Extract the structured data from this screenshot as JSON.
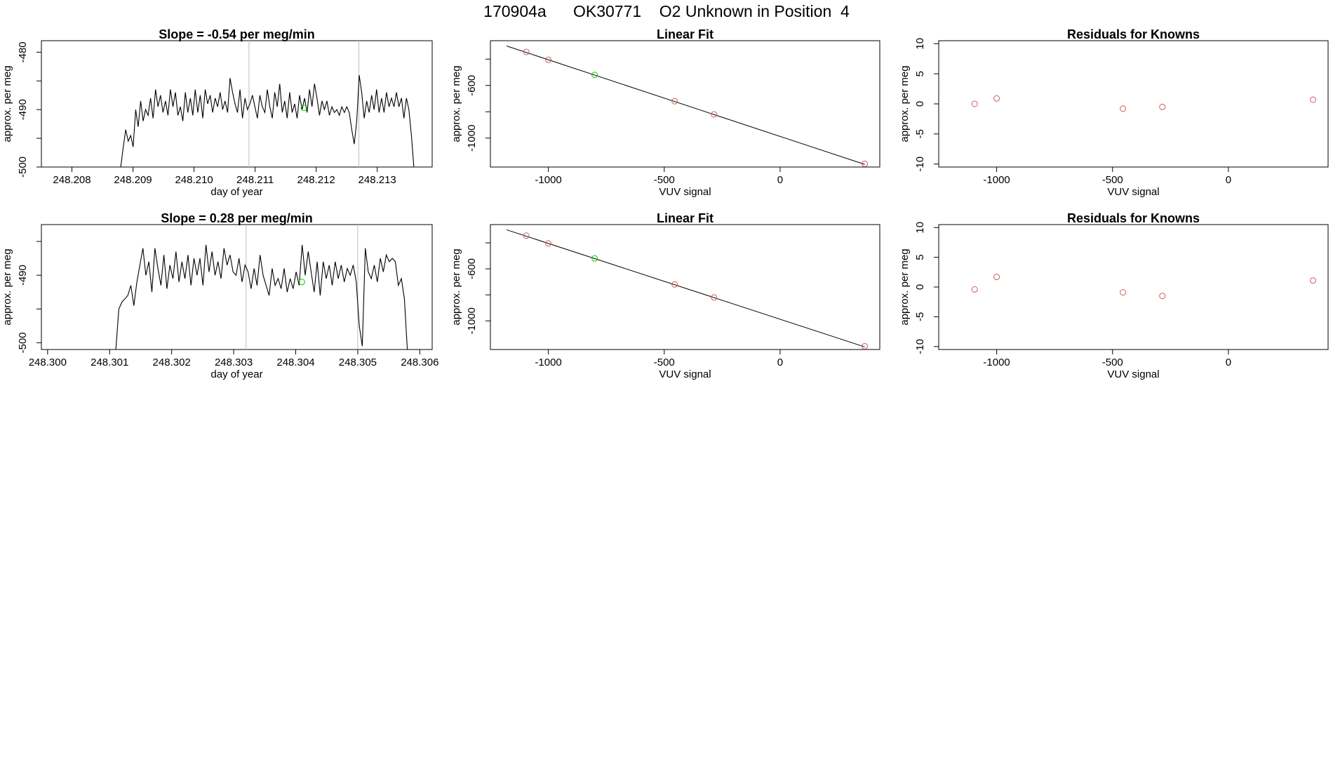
{
  "title": "170904a      OK30771    O2 Unknown in Position  4",
  "colors": {
    "line": "#000000",
    "marker": "#cd5c5c",
    "highlight": "#00cd00",
    "vline": "#bebebe"
  },
  "rows": [
    {
      "timeseries": {
        "title": "Slope =  -0.54  per meg/min",
        "xlabel": "day of year",
        "ylabel": "approx. per meg",
        "xlim": [
          248.2075,
          248.2139
        ],
        "ylim": [
          -500,
          -478
        ],
        "xticks": [
          248.208,
          248.209,
          248.21,
          248.211,
          248.212,
          248.213
        ],
        "xtick_labels": [
          "248.208",
          "248.209",
          "248.210",
          "248.211",
          "248.212",
          "248.213"
        ],
        "yticks": [
          -500,
          -495,
          -490,
          -485,
          -480
        ],
        "ytick_labels": [
          "-500",
          "",
          "-490",
          "",
          "-480"
        ],
        "vlines": [
          248.2109,
          248.2127
        ],
        "x_start": 248.2088,
        "x_end": 248.2136,
        "marker": {
          "x": 248.2118,
          "y": -489.7
        },
        "series_y": [
          -500,
          -496.5,
          -493.5,
          -495.5,
          -494.5,
          -496.5,
          -490,
          -493,
          -488.5,
          -492,
          -490,
          -491,
          -488,
          -491.5,
          -486.5,
          -489.5,
          -487.5,
          -490.5,
          -488.5,
          -491,
          -486.5,
          -489.5,
          -487,
          -491,
          -489.5,
          -492,
          -487,
          -490.5,
          -488,
          -491,
          -486.5,
          -490.5,
          -487.5,
          -491.5,
          -486.5,
          -489,
          -487.5,
          -490.5,
          -488,
          -489.5,
          -487,
          -490,
          -488.5,
          -490.5,
          -484.5,
          -487,
          -489,
          -490.5,
          -486.5,
          -491.5,
          -488,
          -490,
          -489,
          -487.5,
          -489.5,
          -491.5,
          -487.5,
          -489.5,
          -490.5,
          -486.5,
          -489.5,
          -491.5,
          -487,
          -489.5,
          -485.5,
          -490.5,
          -488.5,
          -491.5,
          -487,
          -490.5,
          -489,
          -491.5,
          -487.5,
          -490,
          -488,
          -490.5,
          -486.5,
          -489.5,
          -485.5,
          -488,
          -491,
          -488.5,
          -490,
          -488.5,
          -491,
          -489.5,
          -490.5,
          -490,
          -491,
          -489.5,
          -490.5,
          -489.5,
          -490.5,
          -493.5,
          -496,
          -492,
          -484,
          -487,
          -491.5,
          -488.5,
          -490.5,
          -487.5,
          -490,
          -486.5,
          -490.5,
          -488,
          -490.5,
          -487,
          -489.5,
          -488,
          -489.5,
          -487,
          -489.5,
          -488,
          -491.5,
          -488,
          -490,
          -494.5,
          -500
        ]
      },
      "fit": {
        "title": "Linear Fit",
        "xlabel": "VUV signal",
        "ylabel": "approx. per meg",
        "xlim": [
          -1250,
          430
        ],
        "ylim": [
          -1220,
          -260
        ],
        "xticks": [
          -1000,
          -500,
          0
        ],
        "xtick_labels": [
          "-1000",
          "-500",
          "0"
        ],
        "yticks": [
          -1000,
          -800,
          -600,
          -400
        ],
        "ytick_labels": [
          "-1000",
          "",
          "-600",
          ""
        ],
        "line": {
          "x": [
            -1180,
            365
          ],
          "y": [
            -300,
            -1200
          ]
        },
        "knowns": [
          {
            "x": -1095,
            "y": -345
          },
          {
            "x": -1000,
            "y": -405
          },
          {
            "x": -455,
            "y": -720
          },
          {
            "x": -285,
            "y": -820
          },
          {
            "x": 365,
            "y": -1195
          }
        ],
        "unknown": {
          "x": -800,
          "y": -520
        }
      },
      "residuals": {
        "title": "Residuals for Knowns",
        "xlabel": "VUV signal",
        "ylabel": "approx. per meg",
        "xlim": [
          -1250,
          430
        ],
        "ylim": [
          -10.5,
          10.5
        ],
        "xticks": [
          -1000,
          -500,
          0
        ],
        "xtick_labels": [
          "-1000",
          "-500",
          "0"
        ],
        "yticks": [
          -10,
          -5,
          0,
          5,
          10
        ],
        "ytick_labels": [
          "-10",
          "-5",
          "0",
          "5",
          "10"
        ],
        "points": [
          {
            "x": -1095,
            "y": 0.0
          },
          {
            "x": -1000,
            "y": 0.9
          },
          {
            "x": -455,
            "y": -0.8
          },
          {
            "x": -285,
            "y": -0.5
          },
          {
            "x": 365,
            "y": 0.7
          }
        ]
      }
    },
    {
      "timeseries": {
        "title": "Slope =  0.28  per meg/min",
        "xlabel": "day of year",
        "ylabel": "approx. per meg",
        "xlim": [
          248.2999,
          248.3062
        ],
        "ylim": [
          -501,
          -482.5
        ],
        "xticks": [
          248.3,
          248.301,
          248.302,
          248.303,
          248.304,
          248.305,
          248.306
        ],
        "xtick_labels": [
          "248.300",
          "248.301",
          "248.302",
          "248.303",
          "248.304",
          "248.305",
          "248.306"
        ],
        "yticks": [
          -500,
          -495,
          -490,
          -485
        ],
        "ytick_labels": [
          "-500",
          "",
          "-490",
          ""
        ],
        "vlines": [
          248.3032,
          248.305
        ],
        "x_start": 248.3011,
        "x_end": 248.3058,
        "marker": {
          "x": 248.3041,
          "y": -491
        },
        "series_y": [
          -501,
          -495,
          -494,
          -493.5,
          -493,
          -491.5,
          -494.5,
          -491,
          -488.5,
          -486,
          -490,
          -488,
          -492.5,
          -486,
          -489,
          -491.5,
          -487,
          -492,
          -488.5,
          -490.5,
          -486.5,
          -491,
          -488,
          -490.5,
          -487,
          -491.5,
          -487.5,
          -490,
          -487.5,
          -491.5,
          -485.5,
          -489.5,
          -486.5,
          -490,
          -488,
          -490.5,
          -486,
          -488.5,
          -487,
          -489.5,
          -490,
          -487.5,
          -491,
          -488.5,
          -489.5,
          -492,
          -489,
          -491.5,
          -487,
          -490,
          -491.5,
          -493,
          -489,
          -491.5,
          -490.5,
          -492,
          -489,
          -492.5,
          -490.5,
          -492,
          -489.5,
          -491.5,
          -485.5,
          -490,
          -486.5,
          -489.5,
          -492.5,
          -488,
          -493,
          -488,
          -490.5,
          -488.5,
          -491.5,
          -488,
          -490.5,
          -488.5,
          -491,
          -489,
          -490,
          -488.5,
          -491,
          -497.5,
          -500.5,
          -486,
          -489.5,
          -490.5,
          -488.5,
          -491,
          -487.5,
          -489.5,
          -487,
          -488,
          -487.5,
          -488,
          -491.5,
          -490.5,
          -493.5,
          -501
        ]
      },
      "fit": {
        "title": "Linear Fit",
        "xlabel": "VUV signal",
        "ylabel": "approx. per meg",
        "xlim": [
          -1250,
          430
        ],
        "ylim": [
          -1220,
          -260
        ],
        "xticks": [
          -1000,
          -500,
          0
        ],
        "xtick_labels": [
          "-1000",
          "-500",
          "0"
        ],
        "yticks": [
          -1000,
          -800,
          -600,
          -400
        ],
        "ytick_labels": [
          "-1000",
          "",
          "-600",
          ""
        ],
        "line": {
          "x": [
            -1180,
            365
          ],
          "y": [
            -300,
            -1200
          ]
        },
        "knowns": [
          {
            "x": -1095,
            "y": -345
          },
          {
            "x": -1000,
            "y": -405
          },
          {
            "x": -455,
            "y": -720
          },
          {
            "x": -285,
            "y": -820
          },
          {
            "x": 365,
            "y": -1195
          }
        ],
        "unknown": {
          "x": -800,
          "y": -520
        }
      },
      "residuals": {
        "title": "Residuals for Knowns",
        "xlabel": "VUV signal",
        "ylabel": "approx. per meg",
        "xlim": [
          -1250,
          430
        ],
        "ylim": [
          -10.5,
          10.5
        ],
        "xticks": [
          -1000,
          -500,
          0
        ],
        "xtick_labels": [
          "-1000",
          "-500",
          "0"
        ],
        "yticks": [
          -10,
          -5,
          0,
          5,
          10
        ],
        "ytick_labels": [
          "-10",
          "-5",
          "0",
          "5",
          "10"
        ],
        "points": [
          {
            "x": -1095,
            "y": -0.4
          },
          {
            "x": -1000,
            "y": 1.7
          },
          {
            "x": -455,
            "y": -0.9
          },
          {
            "x": -285,
            "y": -1.5
          },
          {
            "x": 365,
            "y": 1.1
          }
        ]
      }
    }
  ],
  "chart_data": [
    {
      "type": "line",
      "title": "Slope =  -0.54  per meg/min",
      "xlabel": "day of year",
      "ylabel": "approx. per meg",
      "xlim": [
        248.2075,
        248.2139
      ],
      "ylim": [
        -500,
        -478
      ]
    },
    {
      "type": "scatter",
      "title": "Linear Fit",
      "xlabel": "VUV signal",
      "ylabel": "approx. per meg",
      "xlim": [
        -1250,
        430
      ],
      "ylim": [
        -1220,
        -260
      ]
    },
    {
      "type": "scatter",
      "title": "Residuals for Knowns",
      "xlabel": "VUV signal",
      "ylabel": "approx. per meg",
      "xlim": [
        -1250,
        430
      ],
      "ylim": [
        -10.5,
        10.5
      ]
    },
    {
      "type": "line",
      "title": "Slope =  0.28  per meg/min",
      "xlabel": "day of year",
      "ylabel": "approx. per meg",
      "xlim": [
        248.2999,
        248.3062
      ],
      "ylim": [
        -501,
        -482.5
      ]
    },
    {
      "type": "scatter",
      "title": "Linear Fit",
      "xlabel": "VUV signal",
      "ylabel": "approx. per meg",
      "xlim": [
        -1250,
        430
      ],
      "ylim": [
        -1220,
        -260
      ]
    },
    {
      "type": "scatter",
      "title": "Residuals for Knowns",
      "xlabel": "VUV signal",
      "ylabel": "approx. per meg",
      "xlim": [
        -1250,
        430
      ],
      "ylim": [
        -10.5,
        10.5
      ]
    }
  ]
}
